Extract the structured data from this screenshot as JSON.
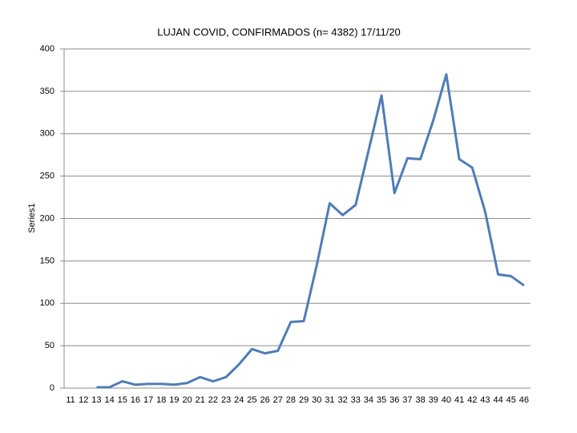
{
  "chart_data": {
    "type": "line",
    "title": "LUJAN COVID, CONFIRMADOS (n= 4382)  17/11/20",
    "y_label": "Series1",
    "categories": [
      "11",
      "12",
      "13",
      "14",
      "15",
      "16",
      "17",
      "18",
      "19",
      "20",
      "21",
      "22",
      "23",
      "24",
      "25",
      "26",
      "27",
      "28",
      "29",
      "30",
      "31",
      "32",
      "33",
      "34",
      "35",
      "36",
      "37",
      "38",
      "39",
      "40",
      "41",
      "42",
      "43",
      "44",
      "45",
      "46"
    ],
    "values": [
      null,
      null,
      1,
      1,
      8,
      4,
      5,
      5,
      4,
      6,
      13,
      8,
      13,
      28,
      46,
      41,
      44,
      78,
      79,
      145,
      218,
      204,
      216,
      280,
      345,
      230,
      271,
      270,
      316,
      370,
      270,
      260,
      208,
      134,
      132,
      121
    ],
    "color": "#4f7db5",
    "ylim": [
      0,
      400
    ],
    "yticks": [
      0,
      50,
      100,
      150,
      200,
      250,
      300,
      350,
      400
    ],
    "grid": true
  }
}
